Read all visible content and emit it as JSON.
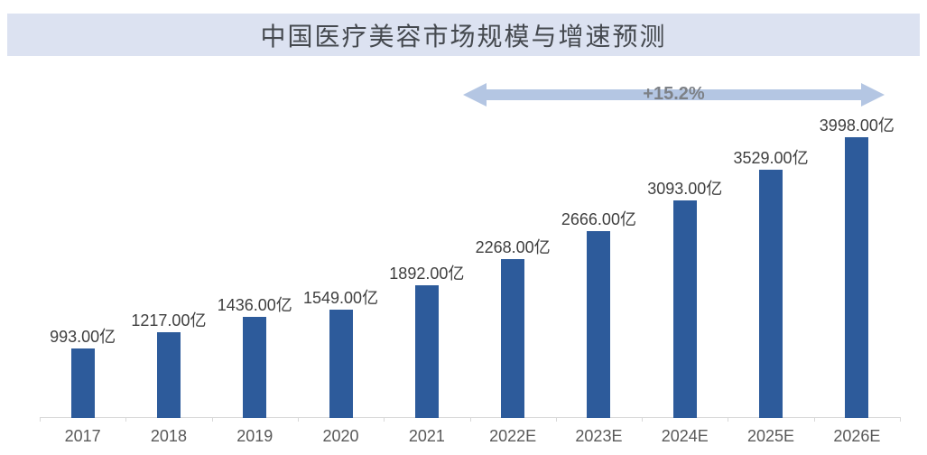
{
  "title": {
    "text": "中国医疗美容市场规模与增速预测"
  },
  "growth_arrow": {
    "label": "+15.2%"
  },
  "chart_data": {
    "type": "bar",
    "title": "中国医疗美容市场规模与增速预测",
    "categories": [
      "2017",
      "2018",
      "2019",
      "2020",
      "2021",
      "2022E",
      "2023E",
      "2024E",
      "2025E",
      "2026E"
    ],
    "values": [
      993,
      1217,
      1436,
      1549,
      1892,
      2268,
      2666,
      3093,
      3529,
      3998
    ],
    "bar_labels": [
      "993.00亿",
      "1217.00亿",
      "1436.00亿",
      "1549.00亿",
      "1892.00亿",
      "2268.00亿",
      "2666.00亿",
      "3093.00亿",
      "3529.00亿",
      "3998.00亿"
    ],
    "unit": "亿",
    "xlabel": "",
    "ylabel": "",
    "ylim": [
      0,
      4200
    ],
    "grid": false,
    "legend": false,
    "value_labels_shown": true,
    "annotation": {
      "text": "+15.2%",
      "shape": "double-headed-arrow",
      "position": "above bars, spanning 2021 to 2026E"
    }
  },
  "colors": {
    "bar": "#2d5b9b",
    "title_band_bg": "#dce2f1",
    "title_text": "#45494f",
    "arrow_fill": "#b4c6e3",
    "arrow_text": "#7d8187",
    "axis_line": "#d9d9d9",
    "value_label": "#3f3f3f",
    "tick_label": "#595959",
    "background": "#ffffff"
  }
}
